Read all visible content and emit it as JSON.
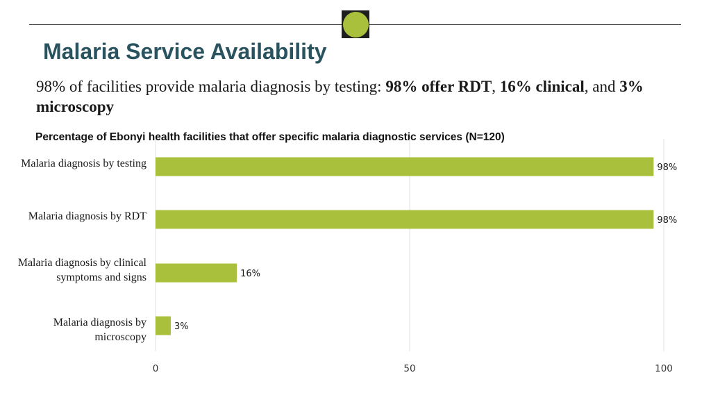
{
  "header": {
    "title": "Malaria Service Availability",
    "summary": {
      "part1": "98% of facilities provide malaria diagnosis by testing: ",
      "bold1": "98% offer RDT",
      "part2": ", ",
      "bold2": "16% clinical",
      "part3": ", and ",
      "bold3": "3% microscopy"
    }
  },
  "colors": {
    "accent": "#a8c03c",
    "title": "#2a5360",
    "grid": "#e2e2e2"
  },
  "chart_data": {
    "type": "bar",
    "orientation": "horizontal",
    "title": "Percentage of Ebonyi health facilities that offer specific malaria diagnostic services (N=120)",
    "categories": [
      "Malaria diagnosis by testing",
      "Malaria diagnosis by RDT",
      "Malaria diagnosis by clinical symptoms and signs",
      "Malaria diagnosis by microscopy"
    ],
    "values": [
      98,
      98,
      16,
      3
    ],
    "data_labels": [
      "98%",
      "98%",
      "16%",
      "3%"
    ],
    "xlim": [
      0,
      100
    ],
    "xticks": [
      0,
      50,
      100
    ],
    "xlabel": "",
    "ylabel": "",
    "grid": true,
    "legend": "none"
  }
}
